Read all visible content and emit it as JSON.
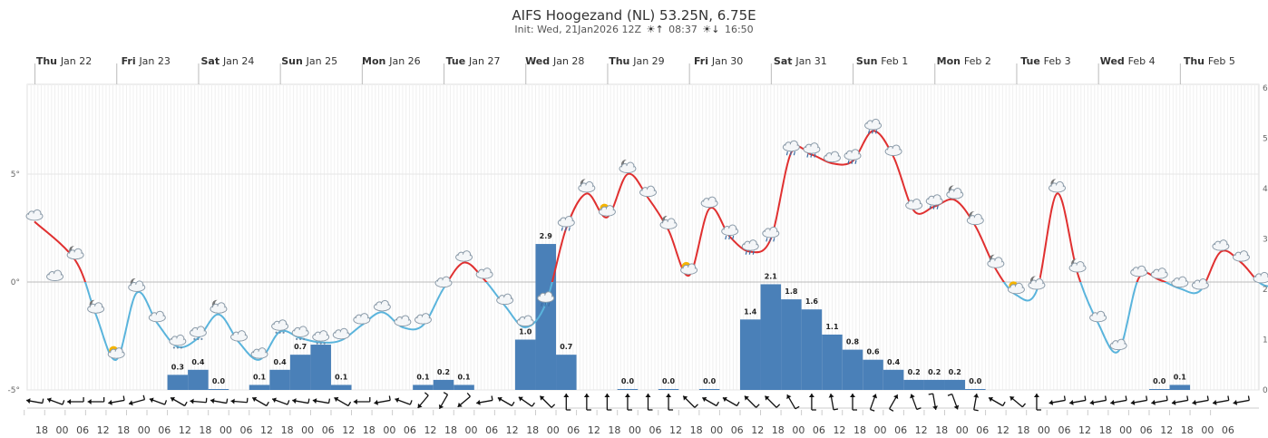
{
  "header": {
    "title": "AIFS Hoogezand (NL) 53.25N, 6.75E",
    "init": "Init: Wed, 21Jan2026 12Z",
    "sunrise": "08:37",
    "sunset": "16:50"
  },
  "chart_data": {
    "type": "line+bar",
    "days": [
      {
        "name": "Thu",
        "date": "Jan 22"
      },
      {
        "name": "Fri",
        "date": "Jan 23"
      },
      {
        "name": "Sat",
        "date": "Jan 24"
      },
      {
        "name": "Sun",
        "date": "Jan 25"
      },
      {
        "name": "Mon",
        "date": "Jan 26"
      },
      {
        "name": "Tue",
        "date": "Jan 27"
      },
      {
        "name": "Wed",
        "date": "Jan 28"
      },
      {
        "name": "Thu",
        "date": "Jan 29"
      },
      {
        "name": "Fri",
        "date": "Jan 30"
      },
      {
        "name": "Sat",
        "date": "Jan 31"
      },
      {
        "name": "Sun",
        "date": "Feb 1"
      },
      {
        "name": "Mon",
        "date": "Feb 2"
      },
      {
        "name": "Tue",
        "date": "Feb 3"
      },
      {
        "name": "Wed",
        "date": "Feb 4"
      },
      {
        "name": "Thu",
        "date": "Feb 5"
      }
    ],
    "hour_labels": [
      "18",
      "00",
      "06",
      "12",
      "18",
      "00",
      "06",
      "12",
      "18",
      "00",
      "06",
      "12",
      "18",
      "00",
      "06",
      "12",
      "18",
      "00",
      "06",
      "12",
      "18",
      "00",
      "06",
      "12",
      "18",
      "00",
      "06",
      "12",
      "18",
      "00",
      "06",
      "12",
      "18",
      "00",
      "06",
      "12",
      "18",
      "00",
      "06",
      "12",
      "18",
      "00",
      "06",
      "12",
      "18",
      "00",
      "06",
      "12",
      "18",
      "00",
      "06",
      "12",
      "18",
      "00",
      "06",
      "12",
      "18",
      "00",
      "06"
    ],
    "left_axis": {
      "ticks": [
        "5°",
        "0°",
        "-5°"
      ],
      "values": [
        5,
        0,
        -5
      ],
      "range": [
        -5,
        9.3
      ]
    },
    "right_axis": {
      "ticks": [
        "6",
        "5",
        "4",
        "3",
        "2",
        "1",
        "0"
      ],
      "values": [
        6,
        5,
        4,
        3,
        2,
        1,
        0
      ],
      "range": [
        0,
        6
      ]
    },
    "temperature": [
      {
        "x": 0,
        "y": 2.8
      },
      {
        "x": 2,
        "y": 1.0
      },
      {
        "x": 3,
        "y": -1.5
      },
      {
        "x": 4,
        "y": -3.6
      },
      {
        "x": 5,
        "y": -0.5
      },
      {
        "x": 6,
        "y": -1.9
      },
      {
        "x": 7,
        "y": -3.0
      },
      {
        "x": 8,
        "y": -2.6
      },
      {
        "x": 9,
        "y": -1.5
      },
      {
        "x": 10,
        "y": -2.8
      },
      {
        "x": 11,
        "y": -3.6
      },
      {
        "x": 12,
        "y": -2.3
      },
      {
        "x": 13,
        "y": -2.6
      },
      {
        "x": 14,
        "y": -2.8
      },
      {
        "x": 15,
        "y": -2.7
      },
      {
        "x": 16,
        "y": -2.0
      },
      {
        "x": 17,
        "y": -1.4
      },
      {
        "x": 18,
        "y": -2.1
      },
      {
        "x": 19,
        "y": -2.0
      },
      {
        "x": 20,
        "y": -0.3
      },
      {
        "x": 21,
        "y": 0.9
      },
      {
        "x": 22,
        "y": 0.1
      },
      {
        "x": 23,
        "y": -1.1
      },
      {
        "x": 24,
        "y": -2.1
      },
      {
        "x": 25,
        "y": -1.0
      },
      {
        "x": 26,
        "y": 2.5
      },
      {
        "x": 27,
        "y": 4.1
      },
      {
        "x": 28,
        "y": 3.0
      },
      {
        "x": 29,
        "y": 5.0
      },
      {
        "x": 30,
        "y": 3.9
      },
      {
        "x": 31,
        "y": 2.4
      },
      {
        "x": 32,
        "y": 0.3
      },
      {
        "x": 33,
        "y": 3.4
      },
      {
        "x": 34,
        "y": 2.1
      },
      {
        "x": 35,
        "y": 1.4
      },
      {
        "x": 36,
        "y": 2.0
      },
      {
        "x": 37,
        "y": 6.0
      },
      {
        "x": 38,
        "y": 5.9
      },
      {
        "x": 39,
        "y": 5.5
      },
      {
        "x": 40,
        "y": 5.6
      },
      {
        "x": 41,
        "y": 7.0
      },
      {
        "x": 42,
        "y": 5.8
      },
      {
        "x": 43,
        "y": 3.3
      },
      {
        "x": 44,
        "y": 3.5
      },
      {
        "x": 45,
        "y": 3.8
      },
      {
        "x": 46,
        "y": 2.6
      },
      {
        "x": 47,
        "y": 0.6
      },
      {
        "x": 48,
        "y": -0.6
      },
      {
        "x": 49,
        "y": -0.4
      },
      {
        "x": 50,
        "y": 4.1
      },
      {
        "x": 51,
        "y": 0.4
      },
      {
        "x": 52,
        "y": -1.9
      },
      {
        "x": 53,
        "y": -3.2
      },
      {
        "x": 54,
        "y": 0.2
      },
      {
        "x": 55,
        "y": 0.1
      },
      {
        "x": 56,
        "y": -0.3
      },
      {
        "x": 57,
        "y": -0.4
      },
      {
        "x": 58,
        "y": 1.4
      },
      {
        "x": 59,
        "y": 0.9
      },
      {
        "x": 60,
        "y": -0.1
      },
      {
        "x": 61,
        "y": -0.2
      }
    ],
    "temperature_cold_color": "#5ab4dc",
    "temperature_warm_color": "#e03030",
    "precip_color": "#4a80b8",
    "precipitation": [
      {
        "x": 7,
        "v": 0.3
      },
      {
        "x": 8,
        "v": 0.4
      },
      {
        "x": 9,
        "v": 0.0
      },
      {
        "x": 11,
        "v": 0.1
      },
      {
        "x": 12,
        "v": 0.4
      },
      {
        "x": 13,
        "v": 0.7
      },
      {
        "x": 14,
        "v": 0.9
      },
      {
        "x": 15,
        "v": 0.1
      },
      {
        "x": 19,
        "v": 0.1
      },
      {
        "x": 20,
        "v": 0.2
      },
      {
        "x": 21,
        "v": 0.1
      },
      {
        "x": 24,
        "v": 1.0
      },
      {
        "x": 25,
        "v": 2.9
      },
      {
        "x": 26,
        "v": 0.7
      },
      {
        "x": 29,
        "v": 0.0
      },
      {
        "x": 31,
        "v": 0.0
      },
      {
        "x": 33,
        "v": 0.0
      },
      {
        "x": 35,
        "v": 1.4
      },
      {
        "x": 36,
        "v": 2.1
      },
      {
        "x": 37,
        "v": 1.8
      },
      {
        "x": 38,
        "v": 1.6
      },
      {
        "x": 39,
        "v": 1.1
      },
      {
        "x": 40,
        "v": 0.8
      },
      {
        "x": 41,
        "v": 0.6
      },
      {
        "x": 42,
        "v": 0.4
      },
      {
        "x": 43,
        "v": 0.2
      },
      {
        "x": 44,
        "v": 0.2
      },
      {
        "x": 45,
        "v": 0.2
      },
      {
        "x": 46,
        "v": 0.0
      },
      {
        "x": 55,
        "v": 0.0
      },
      {
        "x": 56,
        "v": 0.1
      }
    ],
    "icons": [
      {
        "x": 0,
        "t": "cloud"
      },
      {
        "x": 1,
        "t": "cloud"
      },
      {
        "x": 2,
        "t": "moon-cloud"
      },
      {
        "x": 3,
        "t": "moon-cloud"
      },
      {
        "x": 4,
        "t": "sun-cloud"
      },
      {
        "x": 5,
        "t": "moon-cloud"
      },
      {
        "x": 6,
        "t": "cloud"
      },
      {
        "x": 7,
        "t": "snow-cloud"
      },
      {
        "x": 8,
        "t": "snow-cloud"
      },
      {
        "x": 9,
        "t": "moon-cloud"
      },
      {
        "x": 10,
        "t": "cloud"
      },
      {
        "x": 11,
        "t": "cloud"
      },
      {
        "x": 12,
        "t": "snow-cloud"
      },
      {
        "x": 13,
        "t": "snow-cloud"
      },
      {
        "x": 14,
        "t": "snow-cloud"
      },
      {
        "x": 15,
        "t": "cloud"
      },
      {
        "x": 16,
        "t": "cloud"
      },
      {
        "x": 17,
        "t": "cloud"
      },
      {
        "x": 18,
        "t": "cloud"
      },
      {
        "x": 19,
        "t": "cloud"
      },
      {
        "x": 20,
        "t": "cloud"
      },
      {
        "x": 21,
        "t": "cloud"
      },
      {
        "x": 22,
        "t": "cloud"
      },
      {
        "x": 23,
        "t": "cloud"
      },
      {
        "x": 24,
        "t": "cloud"
      },
      {
        "x": 25,
        "t": "rain-cloud"
      },
      {
        "x": 26,
        "t": "rain-cloud"
      },
      {
        "x": 27,
        "t": "moon-cloud"
      },
      {
        "x": 28,
        "t": "sun-cloud"
      },
      {
        "x": 29,
        "t": "moon-cloud"
      },
      {
        "x": 30,
        "t": "cloud"
      },
      {
        "x": 31,
        "t": "moon-cloud"
      },
      {
        "x": 32,
        "t": "sun-cloud"
      },
      {
        "x": 33,
        "t": "cloud"
      },
      {
        "x": 34,
        "t": "rain-cloud"
      },
      {
        "x": 35,
        "t": "rain-cloud"
      },
      {
        "x": 36,
        "t": "rain-cloud"
      },
      {
        "x": 37,
        "t": "rain-cloud"
      },
      {
        "x": 38,
        "t": "rain-cloud"
      },
      {
        "x": 39,
        "t": "cloud"
      },
      {
        "x": 40,
        "t": "rain-cloud"
      },
      {
        "x": 41,
        "t": "rain-cloud"
      },
      {
        "x": 42,
        "t": "cloud"
      },
      {
        "x": 43,
        "t": "cloud"
      },
      {
        "x": 44,
        "t": "rain-cloud"
      },
      {
        "x": 45,
        "t": "moon-cloud"
      },
      {
        "x": 46,
        "t": "moon-cloud"
      },
      {
        "x": 47,
        "t": "moon-cloud"
      },
      {
        "x": 48,
        "t": "sun-cloud"
      },
      {
        "x": 49,
        "t": "moon-cloud"
      },
      {
        "x": 50,
        "t": "moon-cloud"
      },
      {
        "x": 51,
        "t": "moon-cloud"
      },
      {
        "x": 52,
        "t": "cloud"
      },
      {
        "x": 53,
        "t": "cloud"
      },
      {
        "x": 54,
        "t": "cloud"
      },
      {
        "x": 55,
        "t": "cloud"
      },
      {
        "x": 56,
        "t": "cloud"
      },
      {
        "x": 57,
        "t": "cloud"
      },
      {
        "x": 58,
        "t": "cloud"
      },
      {
        "x": 59,
        "t": "cloud"
      },
      {
        "x": 60,
        "t": "cloud"
      }
    ],
    "wind_directions": [
      100,
      110,
      90,
      90,
      80,
      75,
      110,
      120,
      95,
      100,
      95,
      120,
      110,
      100,
      100,
      120,
      90,
      80,
      110,
      40,
      30,
      50,
      80,
      120,
      125,
      135,
      180,
      180,
      180,
      180,
      180,
      180,
      135,
      120,
      120,
      135,
      135,
      150,
      180,
      170,
      180,
      200,
      210,
      160,
      350,
      340,
      190,
      120,
      130,
      180,
      80,
      80,
      80,
      80,
      80,
      80,
      80,
      80,
      80,
      80,
      80
    ],
    "grid": true
  }
}
